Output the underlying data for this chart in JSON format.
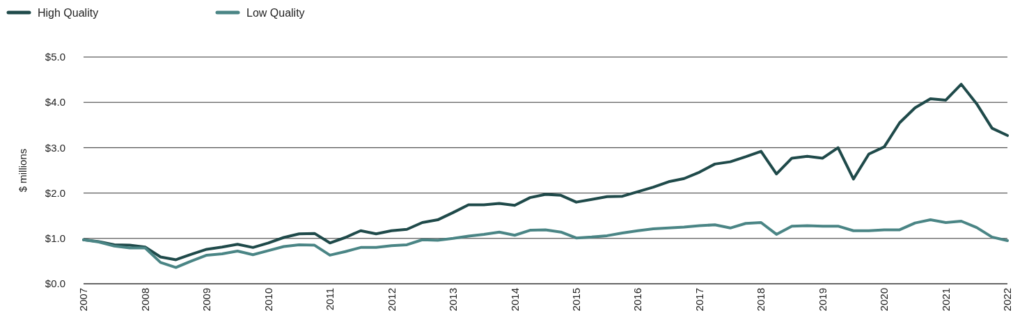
{
  "chart_data": {
    "type": "line",
    "ylabel": "$ millions",
    "legend": "top left",
    "grid": "y",
    "line_style": "solid",
    "xlim": [
      2007,
      2022
    ],
    "xticks": [
      2007,
      2008,
      2009,
      2010,
      2011,
      2012,
      2013,
      2014,
      2015,
      2016,
      2017,
      2018,
      2019,
      2020,
      2021,
      2022
    ],
    "ylim": [
      0,
      5
    ],
    "yticks": [
      {
        "value": 0,
        "label": "$0.0"
      },
      {
        "value": 1,
        "label": "$1.0"
      },
      {
        "value": 2,
        "label": "$2.0"
      },
      {
        "value": 3,
        "label": "$3.0"
      },
      {
        "value": 4,
        "label": "$4.0"
      },
      {
        "value": 5,
        "label": "$5.0"
      }
    ],
    "x": [
      2007,
      2007.25,
      2007.5,
      2007.75,
      2008,
      2008.25,
      2008.5,
      2008.75,
      2009,
      2009.25,
      2009.5,
      2009.75,
      2010,
      2010.25,
      2010.5,
      2010.75,
      2011,
      2011.25,
      2011.5,
      2011.75,
      2012,
      2012.25,
      2012.5,
      2012.75,
      2013,
      2013.25,
      2013.5,
      2013.75,
      2014,
      2014.25,
      2014.5,
      2014.75,
      2015,
      2015.25,
      2015.5,
      2015.75,
      2016,
      2016.25,
      2016.5,
      2016.75,
      2017,
      2017.25,
      2017.5,
      2017.75,
      2018,
      2018.25,
      2018.5,
      2018.75,
      2019,
      2019.25,
      2019.5,
      2019.75,
      2020,
      2020.25,
      2020.5,
      2020.75,
      2021,
      2021.25,
      2021.5,
      2021.75,
      2022
    ],
    "series": [
      {
        "name": "High Quality",
        "color": "#1f4a4a",
        "values": [
          0.97,
          0.93,
          0.86,
          0.85,
          0.81,
          0.59,
          0.53,
          0.65,
          0.76,
          0.81,
          0.87,
          0.8,
          0.9,
          1.02,
          1.1,
          1.11,
          0.9,
          1.02,
          1.17,
          1.1,
          1.17,
          1.2,
          1.35,
          1.41,
          1.57,
          1.74,
          1.74,
          1.77,
          1.73,
          1.9,
          1.97,
          1.95,
          1.8,
          1.86,
          1.92,
          1.93,
          2.03,
          2.13,
          2.25,
          2.32,
          2.46,
          2.64,
          2.69,
          2.8,
          2.92,
          2.42,
          2.77,
          2.81,
          2.77,
          3.0,
          2.31,
          2.86,
          3.02,
          3.55,
          3.88,
          4.08,
          4.05,
          4.4,
          3.97,
          3.43,
          3.27
        ]
      },
      {
        "name": "Low Quality",
        "color": "#4a8585",
        "values": [
          0.97,
          0.92,
          0.83,
          0.79,
          0.79,
          0.47,
          0.36,
          0.5,
          0.63,
          0.66,
          0.72,
          0.64,
          0.73,
          0.82,
          0.86,
          0.85,
          0.63,
          0.71,
          0.8,
          0.8,
          0.84,
          0.86,
          0.97,
          0.96,
          1.0,
          1.05,
          1.09,
          1.14,
          1.07,
          1.18,
          1.19,
          1.14,
          1.01,
          1.03,
          1.06,
          1.12,
          1.17,
          1.21,
          1.23,
          1.25,
          1.28,
          1.3,
          1.23,
          1.33,
          1.35,
          1.09,
          1.27,
          1.28,
          1.27,
          1.27,
          1.17,
          1.17,
          1.19,
          1.19,
          1.34,
          1.41,
          1.35,
          1.38,
          1.24,
          1.03,
          0.95
        ]
      }
    ]
  }
}
